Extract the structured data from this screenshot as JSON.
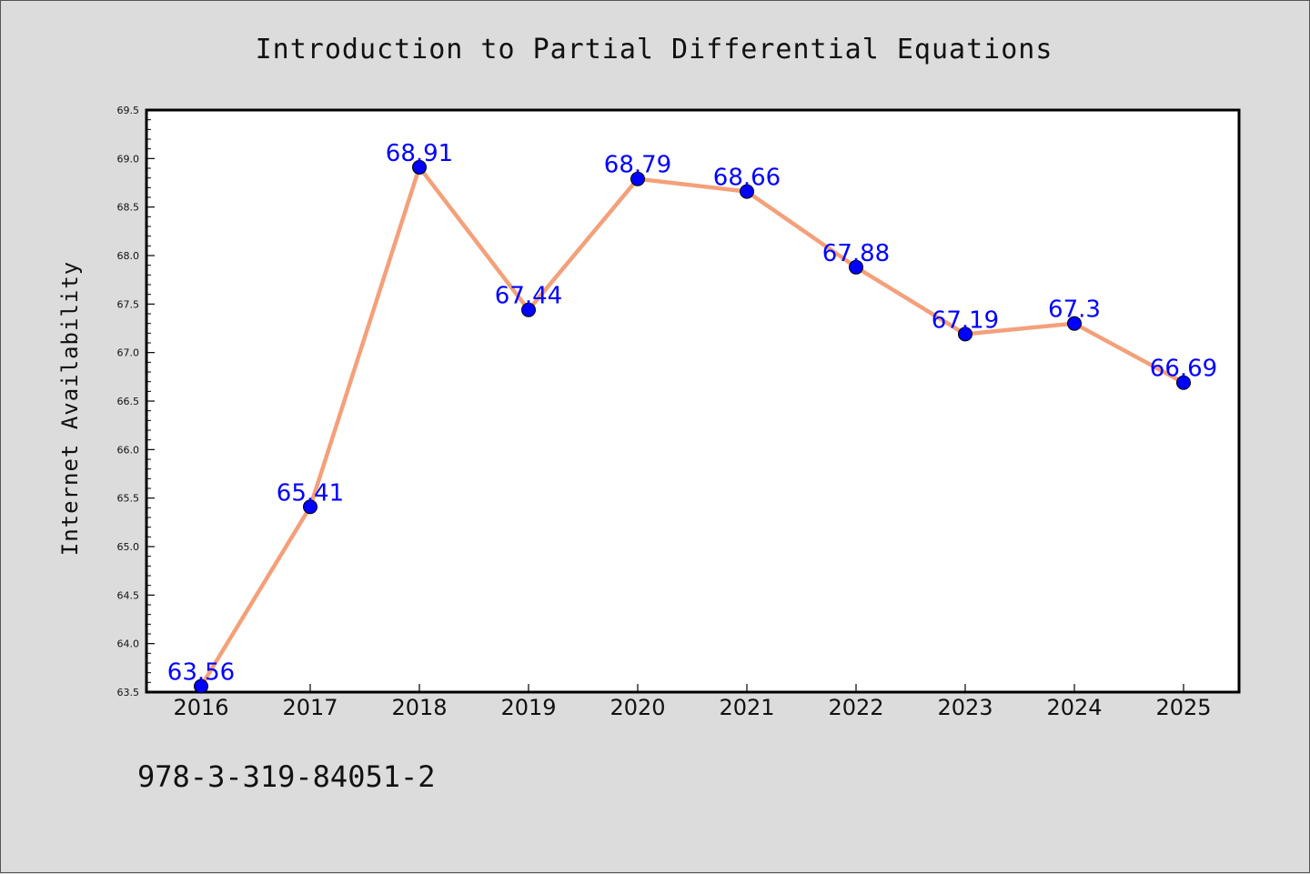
{
  "chart_data": {
    "type": "line",
    "title": "Introduction to Partial Differential Equations",
    "xlabel": "",
    "ylabel": "Internet Availability",
    "categories": [
      "2016",
      "2017",
      "2018",
      "2019",
      "2020",
      "2021",
      "2022",
      "2023",
      "2024",
      "2025"
    ],
    "series": [
      {
        "values": [
          63.56,
          65.41,
          68.91,
          67.44,
          68.79,
          68.66,
          67.88,
          67.19,
          67.3,
          66.69
        ],
        "data_labels": [
          "63.56",
          "65.41",
          "68.91",
          "67.44",
          "68.79",
          "68.66",
          "67.88",
          "67.19",
          "67.3",
          "66.69"
        ],
        "line_color": "#f4a07a",
        "marker_color": "#0000ff"
      }
    ],
    "ylim": [
      63.5,
      69.5
    ],
    "y_ticks": [
      "63.5",
      "64.0",
      "64.5",
      "65.0",
      "65.5",
      "66.0",
      "66.5",
      "67.0",
      "67.5",
      "68.0",
      "68.5",
      "69.0",
      "69.5"
    ],
    "grid": false,
    "legend": "none"
  },
  "footer": {
    "text": "978-3-319-84051-2"
  },
  "colors": {
    "background": "#dcdcdc",
    "plot_background": "#ffffff",
    "label_color": "#0000ff"
  }
}
